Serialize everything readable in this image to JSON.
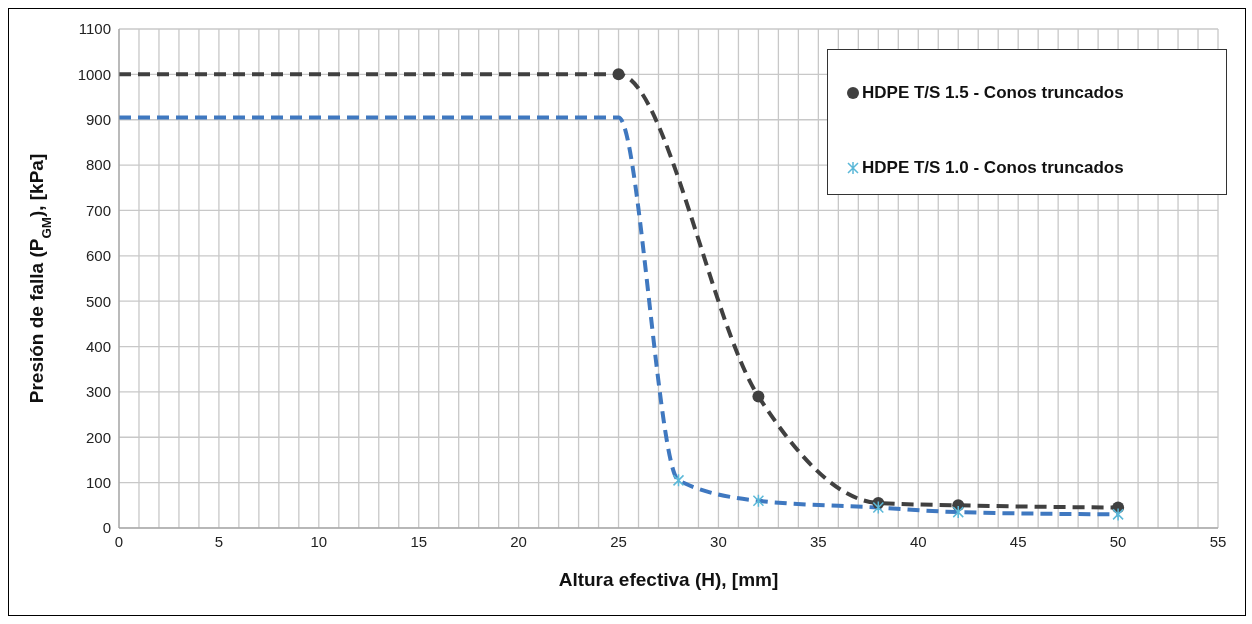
{
  "chart_data": {
    "type": "line",
    "xlabel": "Altura efectiva (H), [mm]",
    "ylabel": "Presión de falla (P$_{GM}$), [kPa]",
    "xlim": [
      0,
      55
    ],
    "xticks": [
      0,
      {
        "value": 1,
        "label": null
      },
      {
        "value": 2,
        "label": null
      },
      {
        "value": 3,
        "label": null
      },
      {
        "value": 4,
        "label": null
      },
      5,
      {
        "value": 6,
        "label": null
      },
      {
        "value": 7,
        "label": null
      },
      {
        "value": 8,
        "label": null
      },
      {
        "value": 9,
        "label": null
      },
      10,
      {
        "value": 11,
        "label": null
      },
      {
        "value": 12,
        "label": null
      },
      {
        "value": 13,
        "label": null
      },
      {
        "value": 14,
        "label": null
      },
      15,
      {
        "value": 16,
        "label": null
      },
      {
        "value": 17,
        "label": null
      },
      {
        "value": 18,
        "label": null
      },
      {
        "value": 19,
        "label": null
      },
      20,
      {
        "value": 21,
        "label": null
      },
      {
        "value": 22,
        "label": null
      },
      {
        "value": 23,
        "label": null
      },
      {
        "value": 24,
        "label": null
      },
      25,
      {
        "value": 26,
        "label": null
      },
      {
        "value": 27,
        "label": null
      },
      {
        "value": 28,
        "label": null
      },
      {
        "value": 29,
        "label": null
      },
      30,
      {
        "value": 31,
        "label": null
      },
      {
        "value": 32,
        "label": null
      },
      {
        "value": 33,
        "label": null
      },
      {
        "value": 34,
        "label": null
      },
      35,
      {
        "value": 36,
        "label": null
      },
      {
        "value": 37,
        "label": null
      },
      {
        "value": 38,
        "label": null
      },
      {
        "value": 39,
        "label": null
      },
      40,
      {
        "value": 41,
        "label": null
      },
      {
        "value": 42,
        "label": null
      },
      {
        "value": 43,
        "label": null
      },
      {
        "value": 44,
        "label": null
      },
      45,
      {
        "value": 46,
        "label": null
      },
      {
        "value": 47,
        "label": null
      },
      {
        "value": 48,
        "label": null
      },
      {
        "value": 49,
        "label": null
      },
      50,
      {
        "value": 51,
        "label": null
      },
      {
        "value": 52,
        "label": null
      },
      {
        "value": 53,
        "label": null
      },
      {
        "value": 54,
        "label": null
      },
      55
    ],
    "ylim": [
      0,
      1100
    ],
    "yticks": [
      0,
      100,
      200,
      300,
      400,
      500,
      600,
      700,
      800,
      900,
      1000,
      1100
    ],
    "grid": true,
    "legend": "top right",
    "series": [
      {
        "type": "line",
        "color": "#404040",
        "line_style": "dashed",
        "x": [
          0,
          25,
          32,
          38,
          42,
          50
        ],
        "values": [
          1000,
          1000,
          290,
          55,
          50,
          45
        ]
      },
      {
        "type": "scatter",
        "name": "HDPE T/S 1.5 - Conos truncados",
        "color": "#404040",
        "marker": "circle",
        "x": [
          25,
          32,
          38,
          42,
          50
        ],
        "values": [
          1000,
          290,
          55,
          50,
          45
        ]
      },
      {
        "type": "line",
        "color": "#3f78c0",
        "line_style": "dashed",
        "x": [
          0,
          25,
          28,
          32,
          38,
          42,
          50
        ],
        "values": [
          905,
          905,
          105,
          60,
          45,
          35,
          30
        ]
      },
      {
        "type": "scatter",
        "name": "HDPE T/S 1.0 - Conos truncados",
        "color": "#5bb8d8",
        "marker": "cross",
        "x": [
          28,
          32,
          38,
          42,
          50
        ],
        "values": [
          105,
          60,
          45,
          35,
          30
        ]
      }
    ]
  }
}
